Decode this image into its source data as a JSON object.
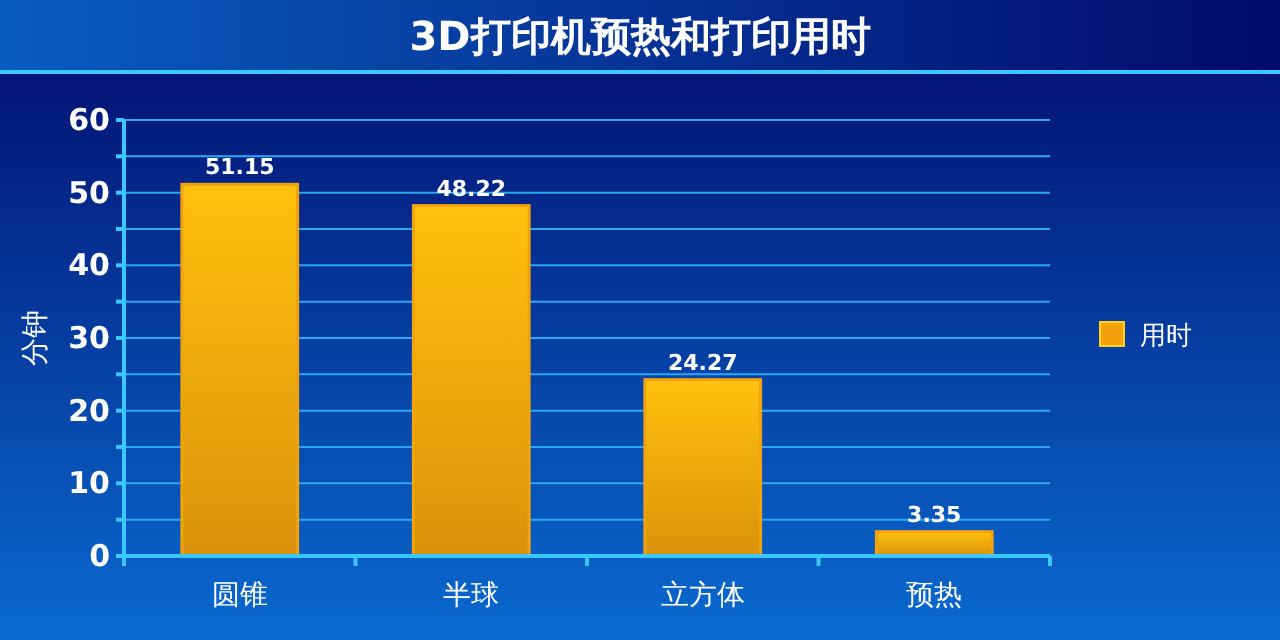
{
  "chart_data": {
    "type": "bar",
    "title": "3D打印机预热和打印用时",
    "ylabel": "分钟",
    "categories": [
      "圆锥",
      "半球",
      "立方体",
      "预热"
    ],
    "series": [
      {
        "name": "用时",
        "color": "#f2a20c",
        "values": [
          51.15,
          48.22,
          24.27,
          3.35
        ]
      }
    ],
    "ylim": [
      0,
      60
    ],
    "yticks": [
      0,
      {
        "value": 5,
        "label": null
      },
      10,
      {
        "value": 15,
        "label": null
      },
      20,
      {
        "value": 25,
        "label": null
      },
      30,
      {
        "value": 35,
        "label": null
      },
      40,
      {
        "value": 45,
        "label": null
      },
      50,
      {
        "value": 55,
        "label": null
      },
      60
    ],
    "grid": "y",
    "legend": "right",
    "data_labels": true
  }
}
